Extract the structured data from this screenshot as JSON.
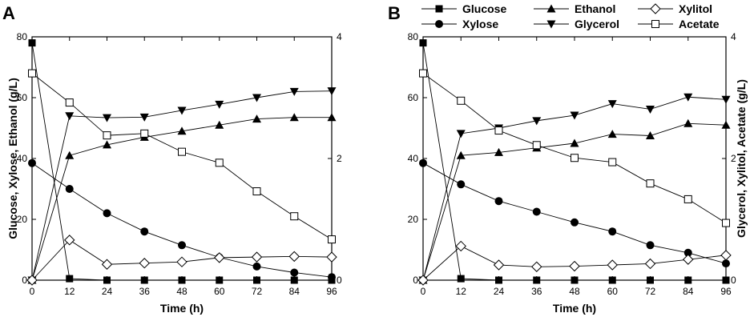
{
  "figure": {
    "legend": {
      "entries": [
        {
          "key": "glucose",
          "label": "Glucose"
        },
        {
          "key": "ethanol",
          "label": "Ethanol"
        },
        {
          "key": "xylitol",
          "label": "Xylitol"
        },
        {
          "key": "xylose",
          "label": "Xylose"
        },
        {
          "key": "glycerol",
          "label": "Glycerol"
        },
        {
          "key": "acetate",
          "label": "Acetate"
        }
      ]
    }
  },
  "chart_data": [
    {
      "type": "line",
      "panel": "A",
      "xlabel": "Time (h)",
      "ylabel_left": "Glucose, Xylose, Ethanol (g/L)",
      "ylabel_right": "",
      "xlim": [
        0,
        96
      ],
      "ylim_left": [
        0,
        80
      ],
      "ylim_right": [
        0,
        4
      ],
      "x_ticks": [
        0,
        12,
        24,
        36,
        48,
        60,
        72,
        84,
        96
      ],
      "y_ticks_left": [
        0,
        20,
        40,
        60,
        80
      ],
      "y_ticks_right": [
        0,
        2,
        4
      ],
      "x": [
        0,
        12,
        24,
        36,
        48,
        60,
        72,
        84,
        96
      ],
      "series": [
        {
          "key": "glucose",
          "name": "Glucose",
          "axis": "left",
          "marker": "square-filled",
          "values": [
            78,
            0.5,
            0,
            0,
            0,
            0,
            0,
            0,
            0
          ]
        },
        {
          "key": "xylose",
          "name": "Xylose",
          "axis": "left",
          "marker": "circle-filled",
          "values": [
            38.5,
            30,
            22,
            16,
            11.5,
            7.5,
            4.5,
            2.5,
            1
          ]
        },
        {
          "key": "ethanol",
          "name": "Ethanol",
          "axis": "left",
          "marker": "triangle-up-filled",
          "values": [
            0,
            41,
            44.5,
            47,
            49,
            51,
            53,
            53.5,
            53.5
          ]
        },
        {
          "key": "glycerol",
          "name": "Glycerol",
          "axis": "right",
          "marker": "triangle-down-filled",
          "values": [
            0,
            2.7,
            2.67,
            2.68,
            2.79,
            2.89,
            3.0,
            3.1,
            3.11
          ]
        },
        {
          "key": "xylitol",
          "name": "Xylitol",
          "axis": "right",
          "marker": "diamond-open",
          "values": [
            0,
            0.66,
            0.26,
            0.28,
            0.3,
            0.37,
            0.38,
            0.39,
            0.38
          ]
        },
        {
          "key": "acetate",
          "name": "Acetate",
          "axis": "right",
          "marker": "square-open",
          "values": [
            3.4,
            2.92,
            2.38,
            2.41,
            2.11,
            1.93,
            1.46,
            1.05,
            0.67
          ]
        }
      ]
    },
    {
      "type": "line",
      "panel": "B",
      "xlabel": "Time (h)",
      "ylabel_left": "",
      "ylabel_right": "Glycerol, Xylitol, Acetate (g/L)",
      "xlim": [
        0,
        96
      ],
      "ylim_left": [
        0,
        80
      ],
      "ylim_right": [
        0,
        4
      ],
      "x_ticks": [
        0,
        12,
        24,
        36,
        48,
        60,
        72,
        84,
        96
      ],
      "y_ticks_left": [
        0,
        20,
        40,
        60,
        80
      ],
      "y_ticks_right": [
        0,
        2,
        4
      ],
      "x": [
        0,
        12,
        24,
        36,
        48,
        60,
        72,
        84,
        96
      ],
      "series": [
        {
          "key": "glucose",
          "name": "Glucose",
          "axis": "left",
          "marker": "square-filled",
          "values": [
            78,
            0.5,
            0,
            0,
            0,
            0,
            0,
            0,
            0
          ]
        },
        {
          "key": "xylose",
          "name": "Xylose",
          "axis": "left",
          "marker": "circle-filled",
          "values": [
            38.5,
            31.5,
            26,
            22.5,
            19,
            16,
            11.5,
            9,
            5.5
          ]
        },
        {
          "key": "ethanol",
          "name": "Ethanol",
          "axis": "left",
          "marker": "triangle-up-filled",
          "values": [
            0,
            41,
            42,
            43.5,
            45,
            48,
            47.5,
            51.5,
            51
          ]
        },
        {
          "key": "glycerol",
          "name": "Glycerol",
          "axis": "right",
          "marker": "triangle-down-filled",
          "values": [
            0,
            2.41,
            2.5,
            2.62,
            2.71,
            2.9,
            2.81,
            3.01,
            2.97
          ]
        },
        {
          "key": "xylitol",
          "name": "Xylitol",
          "axis": "right",
          "marker": "diamond-open",
          "values": [
            0,
            0.56,
            0.25,
            0.22,
            0.23,
            0.25,
            0.27,
            0.34,
            0.41
          ]
        },
        {
          "key": "acetate",
          "name": "Acetate",
          "axis": "right",
          "marker": "square-open",
          "values": [
            3.4,
            2.95,
            2.46,
            2.22,
            2.01,
            1.94,
            1.59,
            1.33,
            0.94
          ]
        }
      ]
    }
  ]
}
